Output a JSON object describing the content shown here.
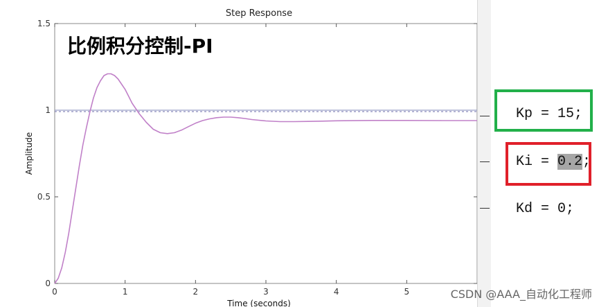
{
  "chart_data": {
    "type": "line",
    "title": "Step Response",
    "overlay_title": "比例积分控制-PI",
    "xlabel": "Time (seconds)",
    "ylabel": "Amplitude",
    "xlim": [
      0,
      6
    ],
    "ylim": [
      0,
      1.5
    ],
    "xticks": [
      "0",
      "1",
      "2",
      "3",
      "4",
      "5"
    ],
    "yticks": [
      "0",
      "0.5",
      "1",
      "1.5"
    ],
    "reference_line": 1,
    "series": [
      {
        "color": "#c080c8",
        "x": [
          0,
          0.05,
          0.1,
          0.15,
          0.2,
          0.25,
          0.3,
          0.35,
          0.4,
          0.45,
          0.5,
          0.55,
          0.6,
          0.65,
          0.7,
          0.75,
          0.8,
          0.85,
          0.9,
          0.95,
          1.0,
          1.05,
          1.1,
          1.15,
          1.2,
          1.3,
          1.4,
          1.5,
          1.6,
          1.7,
          1.8,
          1.9,
          2.0,
          2.1,
          2.2,
          2.3,
          2.4,
          2.5,
          2.6,
          2.7,
          2.8,
          3.0,
          3.2,
          3.4,
          3.6,
          3.8,
          4.0,
          4.5,
          5.0,
          5.5,
          6.0
        ],
        "y": [
          0,
          0.03,
          0.09,
          0.18,
          0.29,
          0.42,
          0.55,
          0.68,
          0.8,
          0.9,
          0.99,
          1.07,
          1.13,
          1.17,
          1.2,
          1.21,
          1.21,
          1.2,
          1.18,
          1.15,
          1.12,
          1.08,
          1.04,
          1.01,
          0.98,
          0.93,
          0.89,
          0.87,
          0.865,
          0.87,
          0.885,
          0.905,
          0.925,
          0.94,
          0.95,
          0.957,
          0.96,
          0.96,
          0.957,
          0.952,
          0.946,
          0.938,
          0.934,
          0.934,
          0.935,
          0.937,
          0.939,
          0.941,
          0.941,
          0.94,
          0.94
        ]
      }
    ]
  },
  "code": {
    "lines": [
      {
        "prefix": "Kp = ",
        "value": "15",
        "suffix": ";"
      },
      {
        "prefix": "Ki = ",
        "value": "0.2",
        "suffix": ";"
      },
      {
        "prefix": "Kd = ",
        "value": "0",
        "suffix": ";"
      }
    ],
    "box_colors": {
      "kp": "#22b04a",
      "ki": "#e0202a"
    },
    "highlight_color": "#a6a6a6"
  },
  "watermark": "CSDN @AAA_自动化工程师"
}
